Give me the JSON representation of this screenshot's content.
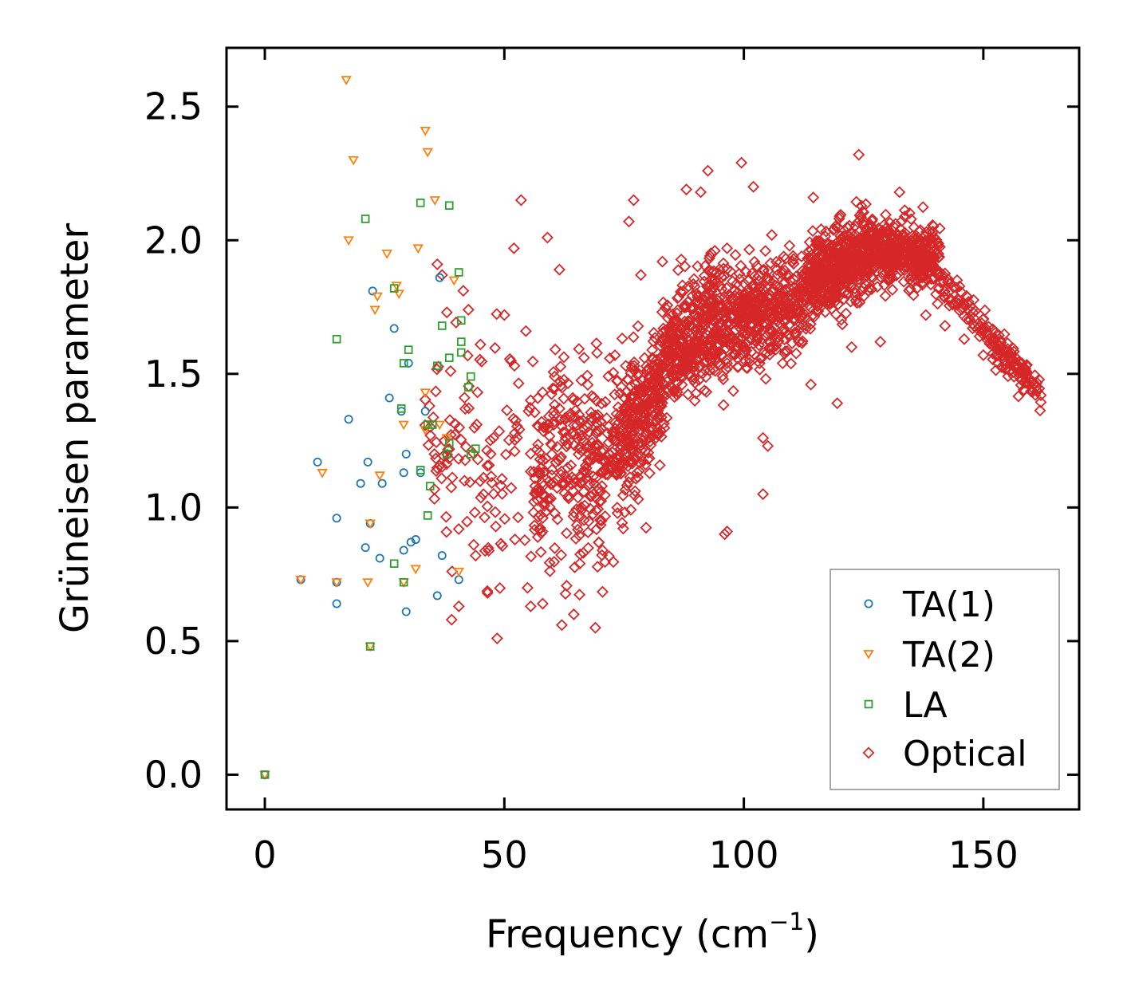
{
  "chart_data": {
    "type": "scatter",
    "title": "",
    "xlabel": "Frequency (cm",
    "xlabel_sup": "−1",
    "xlabel_close": ")",
    "ylabel": "Grüneisen parameter",
    "xlim": [
      -8,
      170
    ],
    "ylim": [
      -0.13,
      2.72
    ],
    "xticks": [
      0,
      50,
      100,
      150
    ],
    "xtick_labels": [
      "0",
      "50",
      "100",
      "150"
    ],
    "yticks": [
      0.0,
      0.5,
      1.0,
      1.5,
      2.0,
      2.5
    ],
    "ytick_labels": [
      "0.0",
      "0.5",
      "1.0",
      "1.5",
      "2.0",
      "2.5"
    ],
    "legend_position": "lower-right",
    "series": [
      {
        "name": "TA(1)",
        "marker": "circle",
        "color": "#1f77b4",
        "points": [
          [
            0,
            0.0
          ],
          [
            7.5,
            0.73
          ],
          [
            11,
            1.17
          ],
          [
            15,
            0.96
          ],
          [
            15,
            0.72
          ],
          [
            15,
            0.64
          ],
          [
            17.5,
            1.33
          ],
          [
            20,
            1.09
          ],
          [
            21,
            0.85
          ],
          [
            21.5,
            1.17
          ],
          [
            22,
            0.94
          ],
          [
            22.5,
            1.81
          ],
          [
            24,
            0.81
          ],
          [
            24.5,
            1.09
          ],
          [
            26,
            1.41
          ],
          [
            27,
            1.67
          ],
          [
            28.5,
            1.36
          ],
          [
            29,
            0.84
          ],
          [
            29,
            1.13
          ],
          [
            29.5,
            0.61
          ],
          [
            29.5,
            1.2
          ],
          [
            30,
            1.54
          ],
          [
            30.5,
            0.87
          ],
          [
            31.5,
            0.88
          ],
          [
            32.5,
            1.13
          ],
          [
            33.5,
            1.36
          ],
          [
            36,
            0.67
          ],
          [
            36.5,
            1.86
          ],
          [
            37,
            0.82
          ],
          [
            40.5,
            0.73
          ]
        ]
      },
      {
        "name": "TA(2)",
        "marker": "triangle-down",
        "color": "#ff7f0e",
        "points": [
          [
            0,
            0.0
          ],
          [
            7.5,
            0.73
          ],
          [
            12,
            1.13
          ],
          [
            15,
            0.72
          ],
          [
            17,
            2.6
          ],
          [
            17.5,
            2.0
          ],
          [
            18.5,
            2.3
          ],
          [
            21.5,
            0.72
          ],
          [
            22,
            0.48
          ],
          [
            22,
            0.94
          ],
          [
            23,
            1.74
          ],
          [
            23.5,
            1.79
          ],
          [
            24,
            1.12
          ],
          [
            25.5,
            1.95
          ],
          [
            27.5,
            1.83
          ],
          [
            28,
            1.8
          ],
          [
            29,
            0.72
          ],
          [
            29,
            1.31
          ],
          [
            31.5,
            0.77
          ],
          [
            32,
            1.97
          ],
          [
            33.5,
            1.43
          ],
          [
            33.5,
            1.29
          ],
          [
            33.5,
            2.41
          ],
          [
            34,
            2.33
          ],
          [
            35.5,
            2.15
          ],
          [
            36.5,
            1.31
          ],
          [
            38,
            1.26
          ],
          [
            39.5,
            1.85
          ],
          [
            40.5,
            0.76
          ]
        ]
      },
      {
        "name": "LA",
        "marker": "square",
        "color": "#2ca02c",
        "points": [
          [
            0,
            0.0
          ],
          [
            15,
            1.63
          ],
          [
            21,
            2.08
          ],
          [
            22,
            0.48
          ],
          [
            27,
            0.79
          ],
          [
            27,
            1.82
          ],
          [
            28.5,
            1.37
          ],
          [
            29,
            0.72
          ],
          [
            29,
            1.54
          ],
          [
            30,
            1.59
          ],
          [
            32.5,
            1.14
          ],
          [
            32.5,
            2.14
          ],
          [
            34,
            0.97
          ],
          [
            34,
            1.31
          ],
          [
            34.5,
            1.08
          ],
          [
            35,
            1.31
          ],
          [
            36,
            1.53
          ],
          [
            37,
            1.68
          ],
          [
            38,
            1.2
          ],
          [
            38.5,
            1.24
          ],
          [
            38.5,
            1.56
          ],
          [
            38.5,
            2.13
          ],
          [
            40.5,
            1.88
          ],
          [
            41,
            1.58
          ],
          [
            41,
            1.62
          ],
          [
            41,
            1.7
          ],
          [
            42.5,
            1.45
          ],
          [
            43,
            1.2
          ],
          [
            43,
            1.49
          ],
          [
            44,
            1.22
          ]
        ]
      },
      {
        "name": "Optical",
        "marker": "diamond",
        "color": "#d62728",
        "seed": 20240531,
        "count": 2600,
        "generator": [
          {
            "weight": 3,
            "x": [
              33,
              56
            ],
            "y_center": [
              1.25,
              1.2
            ],
            "y_spread": 0.36
          },
          {
            "weight": 7,
            "x": [
              56,
              73
            ],
            "y_center": [
              1.12,
              1.22
            ],
            "y_spread": 0.28
          },
          {
            "weight": 8,
            "x": [
              73,
              83
            ],
            "y_center": [
              1.22,
              1.45
            ],
            "y_spread": 0.2
          },
          {
            "weight": 9,
            "x": [
              83,
              96
            ],
            "y_center": [
              1.55,
              1.72
            ],
            "y_spread": 0.17
          },
          {
            "weight": 10,
            "x": [
              96,
              113
            ],
            "y_center": [
              1.68,
              1.78
            ],
            "y_spread": 0.14
          },
          {
            "weight": 12,
            "x": [
              113,
              126
            ],
            "y_center": [
              1.83,
              1.96
            ],
            "y_spread": 0.12
          },
          {
            "weight": 10,
            "x": [
              126,
              141
            ],
            "y_center": [
              1.96,
              1.92
            ],
            "y_spread": 0.09
          },
          {
            "weight": 4,
            "x": [
              141,
              162
            ],
            "y_center": [
              1.85,
              1.42
            ],
            "y_spread": 0.05
          }
        ],
        "points": [
          [
            53.5,
            2.15
          ],
          [
            52,
            1.97
          ],
          [
            59,
            2.01
          ],
          [
            54.5,
            1.66
          ],
          [
            61.5,
            1.89
          ],
          [
            48.5,
            0.51
          ],
          [
            62,
            0.56
          ],
          [
            64.5,
            0.6
          ],
          [
            69,
            0.55
          ],
          [
            55.5,
            0.63
          ],
          [
            58,
            0.64
          ],
          [
            104,
            1.05
          ],
          [
            96,
            0.9
          ],
          [
            96.5,
            0.91
          ],
          [
            119.5,
            1.39
          ],
          [
            122.5,
            1.6
          ],
          [
            124,
            2.32
          ],
          [
            132.5,
            2.18
          ],
          [
            92.5,
            2.26
          ],
          [
            99.5,
            2.29
          ],
          [
            102,
            2.2
          ],
          [
            104.5,
            1.96
          ],
          [
            162,
            1.42
          ],
          [
            160,
            1.47
          ],
          [
            157,
            1.53
          ],
          [
            42.5,
            1.74
          ],
          [
            38,
            1.73
          ],
          [
            37,
            1.87
          ],
          [
            36,
            1.91
          ],
          [
            39,
            0.58
          ],
          [
            40.5,
            0.63
          ],
          [
            44,
            0.82
          ],
          [
            46.5,
            0.68
          ],
          [
            66.5,
            0.83
          ],
          [
            70.5,
            0.84
          ],
          [
            77,
            2.15
          ],
          [
            76,
            2.07
          ],
          [
            88,
            2.19
          ],
          [
            91,
            2.18
          ],
          [
            96.5,
            1.97
          ],
          [
            111.5,
            1.62
          ],
          [
            114,
            1.46
          ],
          [
            117.5,
            1.99
          ],
          [
            114.5,
            2.16
          ],
          [
            120,
            2.09
          ],
          [
            126,
            1.81
          ],
          [
            128.5,
            1.62
          ],
          [
            138,
            1.72
          ],
          [
            142,
            1.68
          ],
          [
            146,
            1.63
          ],
          [
            150,
            1.57
          ],
          [
            153,
            1.54
          ],
          [
            155.5,
            1.51
          ],
          [
            83,
            1.92
          ],
          [
            78.5,
            1.87
          ],
          [
            60.5,
            1.49
          ],
          [
            50,
            1.72
          ],
          [
            45,
            1.61
          ],
          [
            104,
            1.26
          ],
          [
            105,
            1.23
          ],
          [
            107,
            1.74
          ],
          [
            80,
            1.18
          ]
        ]
      }
    ]
  }
}
